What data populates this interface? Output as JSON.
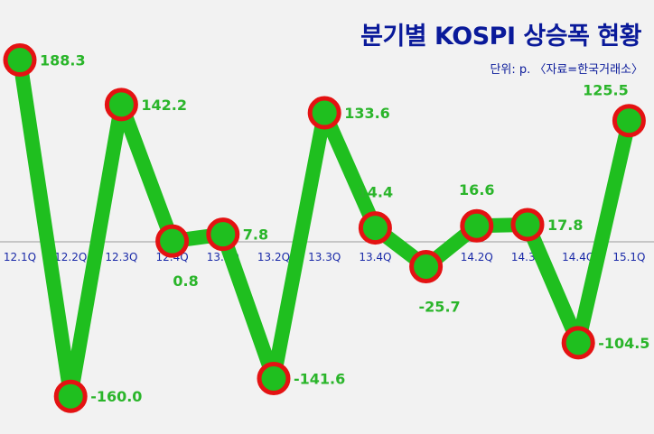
{
  "title": "분기별 KOSPI 상승폭 현황",
  "subtitle": "단위: p. 〈자료=한국거래소〉",
  "chart_data": {
    "type": "line",
    "title": "분기별 KOSPI 상승폭 현황",
    "subtitle": "단위: p. 〈자료=한국거래소〉",
    "categories": [
      "12.1Q",
      "12.2Q",
      "12.3Q",
      "12.4Q",
      "13.1Q",
      "13.2Q",
      "13.3Q",
      "13.4Q",
      "14.1Q",
      "14.2Q",
      "14.3Q",
      "14.4Q",
      "15.1Q"
    ],
    "values": [
      188.3,
      -160.0,
      142.2,
      0.8,
      7.8,
      -141.6,
      133.6,
      14.4,
      -25.7,
      16.6,
      17.8,
      -104.5,
      125.5
    ],
    "data_labels": [
      "188.3",
      "-160.0",
      "142.2",
      "0.8",
      "7.8",
      "-141.6",
      "133.6",
      "14.4",
      "-25.7",
      "16.6",
      "17.8",
      "-104.5",
      "125.5"
    ],
    "ylim": [
      -180,
      210
    ],
    "grid": false,
    "legend": "none",
    "colors": {
      "line": "#1fbf1f",
      "marker_fill": "#1fbf1f",
      "marker_edge": "#e41212",
      "label": "#2ab52a",
      "tick": "#1a2aa8",
      "axis": "#999999"
    }
  }
}
